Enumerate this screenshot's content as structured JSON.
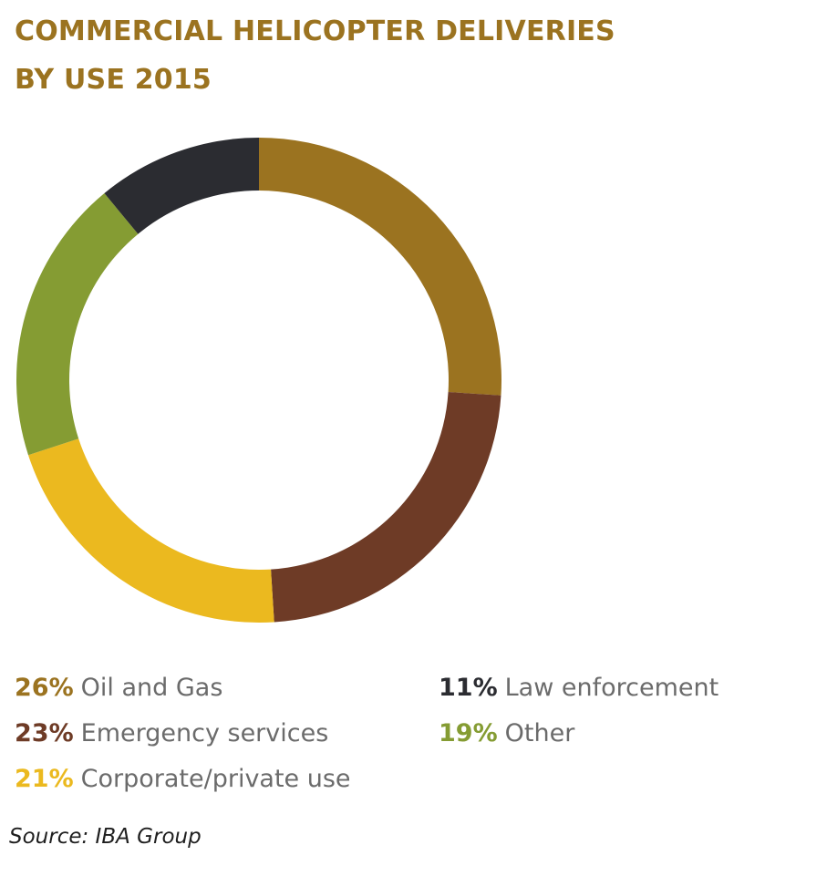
{
  "chart_data": {
    "type": "pie",
    "variant": "donut",
    "title": "COMMERCIAL HELICOPTER DELIVERIES BY USE 2015",
    "title_lines": [
      "COMMERCIAL HELICOPTER DELIVERIES",
      "BY USE 2015"
    ],
    "unit": "%",
    "slices": [
      {
        "label": "Oil and Gas",
        "value": 26,
        "pct_label": "26%",
        "color": "#9b7320"
      },
      {
        "label": "Emergency services",
        "value": 23,
        "pct_label": "23%",
        "color": "#6e3b26"
      },
      {
        "label": "Corporate/private use",
        "value": 21,
        "pct_label": "21%",
        "color": "#ebb91f"
      },
      {
        "label": "Other",
        "value": 19,
        "pct_label": "19%",
        "color": "#859c33"
      },
      {
        "label": "Law enforcement",
        "value": 11,
        "pct_label": "11%",
        "color": "#2b2c31"
      }
    ],
    "legend_order": [
      0,
      1,
      2,
      4,
      3
    ],
    "legend_label_color": "#6b6b6b",
    "title_color": "#9b7320",
    "source": "Source: IBA Group"
  }
}
